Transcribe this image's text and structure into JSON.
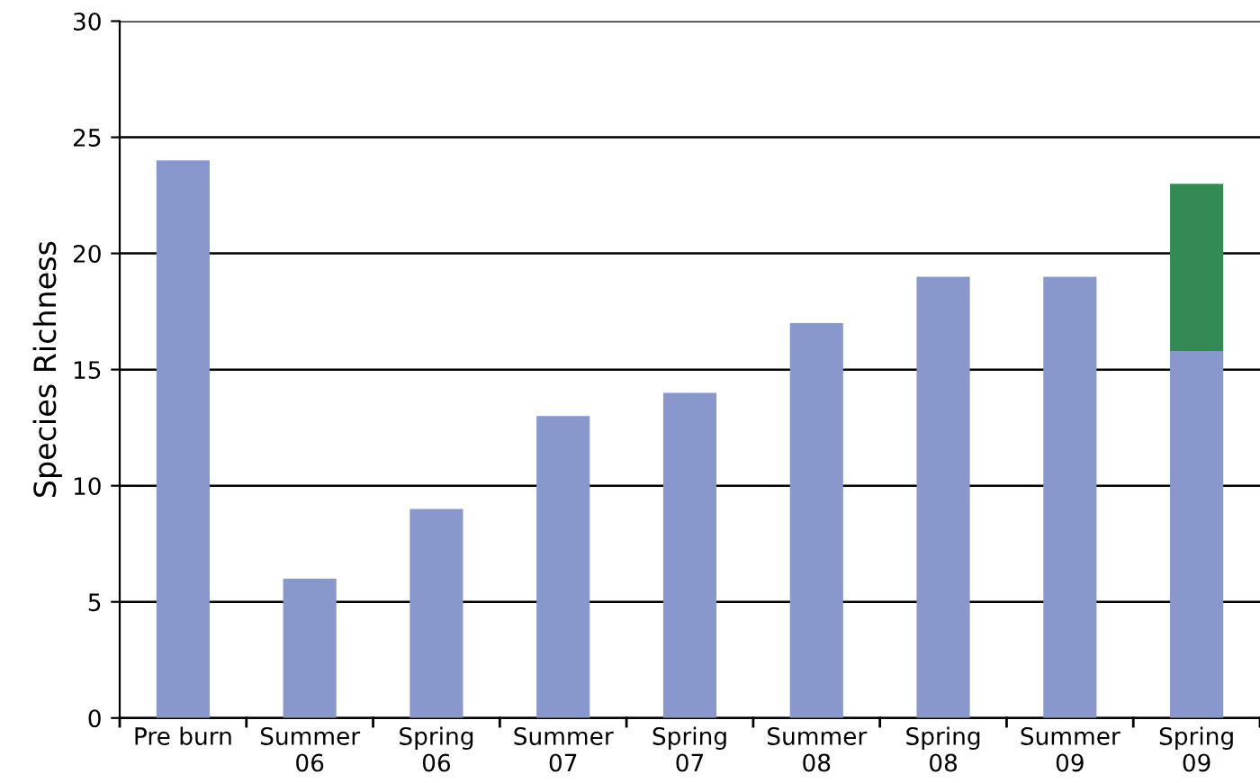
{
  "chart_data": {
    "type": "bar",
    "stacked": true,
    "ylabel": "Species Richness",
    "categories": [
      "Pre burn",
      "Summer\n06",
      "Spring\n06",
      "Summer\n07",
      "Spring\n07",
      "Summer\n08",
      "Spring\n08",
      "Summer\n09",
      "Spring\n09"
    ],
    "series": [
      {
        "color": "#8898cc",
        "values": [
          24,
          6,
          9,
          13,
          14,
          17,
          19,
          19,
          15.8
        ]
      },
      {
        "color": "#338a52",
        "values": [
          null,
          null,
          null,
          null,
          null,
          null,
          null,
          null,
          7.2
        ]
      }
    ],
    "ylim": [
      0,
      30
    ],
    "yticks": [
      0,
      5,
      10,
      15,
      20,
      25,
      30
    ],
    "grid": "y",
    "legend": false
  }
}
